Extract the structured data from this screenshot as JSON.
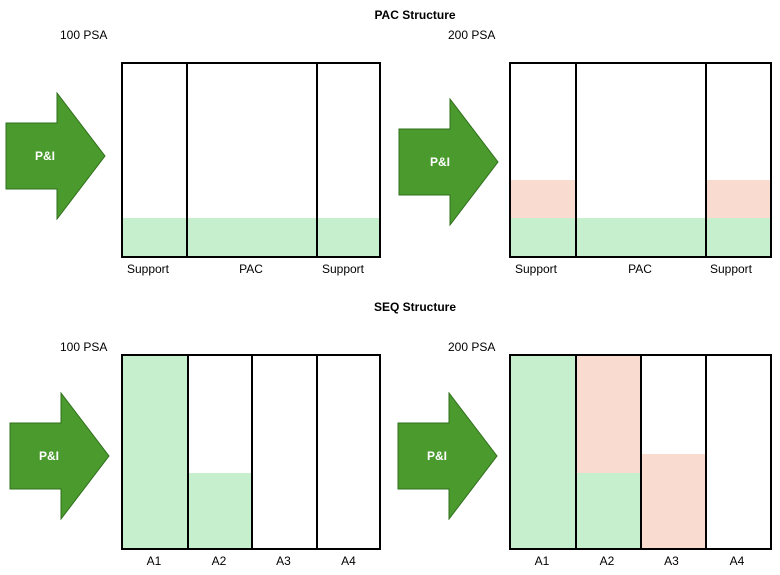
{
  "pac": {
    "title": "PAC Structure",
    "left": {
      "psa": "100 PSA",
      "arrow": "P&I",
      "labels": [
        "Support",
        "PAC",
        "Support"
      ]
    },
    "right": {
      "psa": "200 PSA",
      "arrow": "P&I",
      "labels": [
        "Support",
        "PAC",
        "Support"
      ]
    }
  },
  "seq": {
    "title": "SEQ Structure",
    "left": {
      "psa": "100 PSA",
      "arrow": "P&I",
      "labels": [
        "A1",
        "A2",
        "A3",
        "A4"
      ]
    },
    "right": {
      "psa": "200 PSA",
      "arrow": "P&I",
      "labels": [
        "A1",
        "A2",
        "A3",
        "A4"
      ]
    }
  },
  "colors": {
    "arrow": "#4a9a2e",
    "green_fill": "#c6efce",
    "pink_fill": "#fadbd0"
  }
}
